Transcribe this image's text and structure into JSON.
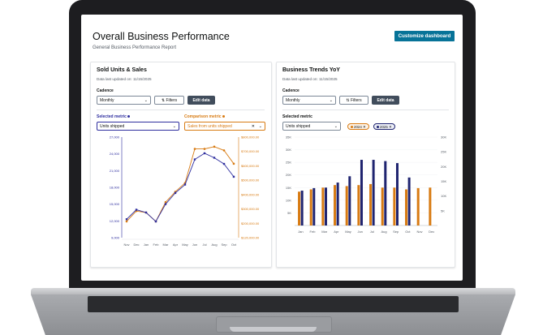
{
  "header": {
    "title": "Overall Business Performance",
    "subtitle": "General Business Performance Report",
    "customize_label": "Customize dashboard"
  },
  "left_card": {
    "title": "Sold Units & Sales",
    "date": "Data last updated on: 11/15/2025",
    "cadence_label": "Cadence",
    "cadence_value": "Monthly",
    "filters_label": "Filters",
    "edit_label": "Edit data",
    "selected_metric_label": "Selected metric",
    "selected_metric_value": "Units shipped",
    "comparison_metric_label": "Comparison metric",
    "comparison_metric_value": "Sales from units shipped"
  },
  "right_card": {
    "title": "Business Trends YoY",
    "date": "Data last updated on: 11/15/2025",
    "cadence_label": "Cadence",
    "cadence_value": "Monthly",
    "filters_label": "Filters",
    "edit_label": "Edit data",
    "selected_metric_label": "Selected metric",
    "selected_metric_value": "Units shipped",
    "token_2024": "2024",
    "token_2025": "2025"
  },
  "colors": {
    "units": "#2e2e9f",
    "sales": "#d87b13",
    "bar_2024": "#d87b13",
    "bar_2025": "#1f2470"
  },
  "chart_data": [
    {
      "type": "line",
      "categories": [
        "Nov",
        "Dec",
        "Jan",
        "Feb",
        "Mar",
        "Apr",
        "May",
        "Jun",
        "Jul",
        "Aug",
        "Sep",
        "Oct"
      ],
      "left_ticks": [
        "27,000",
        "24,000",
        "21,000",
        "18,000",
        "15,000",
        "12,000",
        "9,000"
      ],
      "right_ticks": [
        "$800,000.00",
        "$700,000.00",
        "$600,000.00",
        "$500,000.00",
        "$400,000.00",
        "$300,000.00",
        "$200,000.00",
        "$120,000.00"
      ],
      "ylim_left": [
        9000,
        27000
      ],
      "ylim_right": [
        120000,
        800000
      ],
      "series": [
        {
          "name": "Units shipped",
          "axis": "left",
          "values": [
            12300,
            14000,
            13500,
            11900,
            15000,
            17000,
            18500,
            23000,
            24100,
            23300,
            22200,
            19900
          ]
        },
        {
          "name": "Sales from units shipped",
          "axis": "right",
          "values": [
            230000,
            300000,
            290000,
            230000,
            360000,
            430000,
            490000,
            720000,
            720000,
            735000,
            710000,
            620000
          ]
        }
      ]
    },
    {
      "type": "bar",
      "categories": [
        "Jan",
        "Feb",
        "Mar",
        "Apr",
        "May",
        "Jun",
        "Jul",
        "Aug",
        "Sep",
        "Oct",
        "Nov",
        "Dec"
      ],
      "left_ticks": [
        "35K",
        "30K",
        "25K",
        "20K",
        "15K",
        "10K",
        "5K"
      ],
      "right_ticks": [
        "30K",
        "25K",
        "20K",
        "15K",
        "10K",
        "5K"
      ],
      "ylim": [
        0,
        35000
      ],
      "series": [
        {
          "name": "2024",
          "values": [
            13400,
            14300,
            15000,
            16000,
            15600,
            16000,
            16400,
            15000,
            15000,
            14300,
            14800,
            15000
          ]
        },
        {
          "name": "2025",
          "values": [
            13800,
            14800,
            15000,
            17000,
            19500,
            26000,
            26000,
            25500,
            24700,
            19000,
            null,
            null
          ]
        }
      ]
    }
  ]
}
